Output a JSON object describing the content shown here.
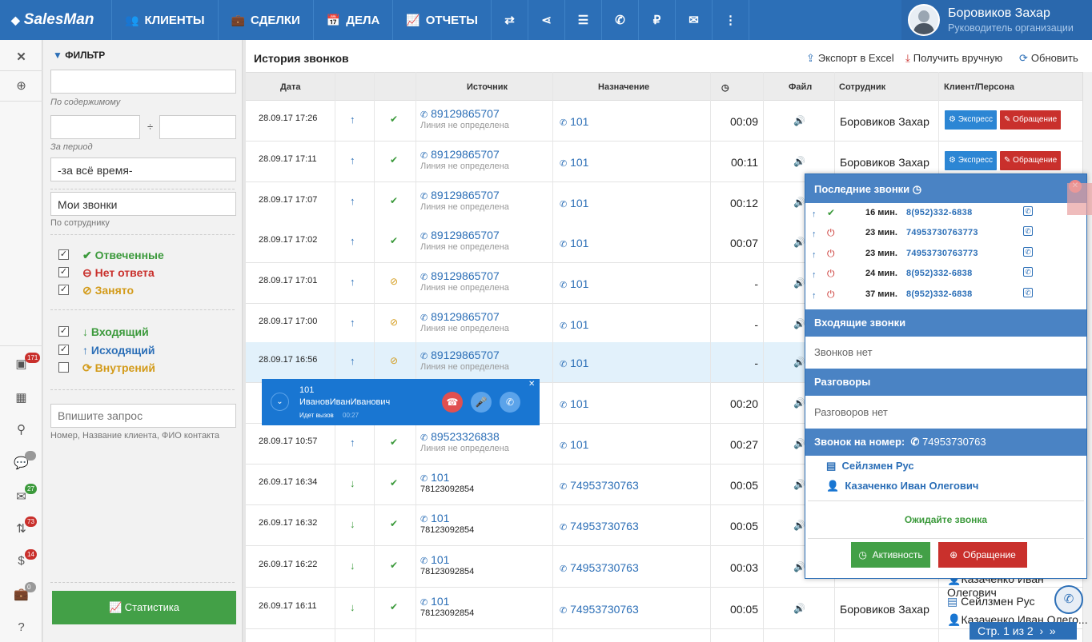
{
  "app": {
    "logo": "SalesMan"
  },
  "nav": {
    "clients": "КЛИЕНТЫ",
    "deals": "СДЕЛКИ",
    "tasks": "ДЕЛА",
    "reports": "ОТЧЕТЫ",
    "ruble": "₽"
  },
  "user": {
    "name": "Боровиков Захар",
    "role": "Руководитель организации"
  },
  "badges": {
    "b1": "171",
    "b2": "27",
    "b3": "73",
    "b4": "14",
    "b5": "0"
  },
  "filter": {
    "title": "ФИЛЬТР",
    "content_label": "По содержимому",
    "period_sep": "÷",
    "period_label": "За период",
    "period_value": "-за всё время-",
    "employee_value": "Мои звонки",
    "employee_label": "По сотруднику",
    "status": [
      {
        "label": "Отвеченные",
        "checked": "✓",
        "color": "#3c9a3c"
      },
      {
        "label": "Нет ответа",
        "checked": "✓",
        "color": "#c9302c"
      },
      {
        "label": "Занято",
        "checked": "✓",
        "color": "#d39b1a"
      }
    ],
    "direction": [
      {
        "label": "Входящий",
        "checked": "✓",
        "color": "#3c9a3c"
      },
      {
        "label": "Исходящий",
        "checked": "✓",
        "color": "#2c6fb7"
      },
      {
        "label": "Внутрений",
        "checked": "",
        "color": "#d39b1a"
      }
    ],
    "query_placeholder": "Впишите запрос",
    "query_hint": "Номер, Название клиента, ФИО контакта",
    "stats_button": "Статистика"
  },
  "main": {
    "title": "История звонков",
    "export": "Экспорт в Excel",
    "fetch": "Получить вручную",
    "refresh": "Обновить",
    "columns": {
      "date": "Дата",
      "source": "Источник",
      "dest": "Назначение",
      "dur_icon": "◷",
      "file": "Файл",
      "employee": "Сотрудник",
      "client": "Клиент/Персона"
    },
    "btn_express": "Экспресс",
    "btn_appeal": "Обращение",
    "rows": [
      {
        "date": "28.09.17 17:26",
        "dir": "↑",
        "status": "✔",
        "src1": "89129865707",
        "src2": "Линия не определена",
        "dst": "101",
        "dur": "00:09",
        "emp": "Боровиков Захар"
      },
      {
        "date": "28.09.17 17:11",
        "dir": "↑",
        "status": "✔",
        "src1": "89129865707",
        "src2": "Линия не определена",
        "dst": "101",
        "dur": "00:11",
        "emp": "Боровиков Захар"
      },
      {
        "date": "28.09.17 17:07",
        "dir": "↑",
        "status": "✔",
        "src1": "89129865707",
        "src2": "Линия не определена",
        "dst": "101",
        "dur": "00:12",
        "emp": ""
      },
      {
        "date": "28.09.17 17:02",
        "dir": "↑",
        "status": "✔",
        "src1": "89129865707",
        "src2": "Линия не определена",
        "dst": "101",
        "dur": "00:07",
        "emp": ""
      },
      {
        "date": "28.09.17 17:01",
        "dir": "↑",
        "status": "⊘",
        "src1": "89129865707",
        "src2": "Линия не определена",
        "dst": "101",
        "dur": "-",
        "emp": ""
      },
      {
        "date": "28.09.17 17:00",
        "dir": "↑",
        "status": "⊘",
        "src1": "89129865707",
        "src2": "Линия не определена",
        "dst": "101",
        "dur": "-",
        "emp": ""
      },
      {
        "date": "28.09.17 16:56",
        "dir": "↑",
        "status": "⊘",
        "src1": "89129865707",
        "src2": "Линия не определена",
        "dst": "101",
        "dur": "-",
        "emp": ""
      },
      {
        "date": "",
        "dir": "",
        "status": "",
        "src1": "",
        "src2": "",
        "dst": "101",
        "dur": "00:20",
        "emp": ""
      },
      {
        "date": "28.09.17 10:57",
        "dir": "↑",
        "status": "✔",
        "src1": "89523326838",
        "src2": "Линия не определена",
        "dst": "101",
        "dur": "00:27",
        "emp": ""
      },
      {
        "date": "26.09.17 16:34",
        "dir": "↓",
        "status": "✔",
        "src1": "101",
        "src2": "78123092854",
        "dst": "74953730763",
        "dur": "00:05",
        "emp": ""
      },
      {
        "date": "26.09.17 16:32",
        "dir": "↓",
        "status": "✔",
        "src1": "101",
        "src2": "78123092854",
        "dst": "74953730763",
        "dur": "00:05",
        "emp": ""
      },
      {
        "date": "26.09.17 16:22",
        "dir": "↓",
        "status": "✔",
        "src1": "101",
        "src2": "78123092854",
        "dst": "74953730763",
        "dur": "00:03",
        "emp": ""
      },
      {
        "date": "26.09.17 16:11",
        "dir": "↓",
        "status": "✔",
        "src1": "101",
        "src2": "78123092854",
        "dst": "74953730763",
        "dur": "00:05",
        "emp": "Боровиков Захар"
      }
    ],
    "client_peek": [
      "Казаченко Иван Олегович",
      "Сейлзмен Рус",
      "Казаченко Иван Олего..."
    ]
  },
  "call_widget": {
    "number": "101",
    "name": "ИвановИванИванович",
    "status": "Идет вызов",
    "time": "00:27"
  },
  "panel": {
    "recent_title": "Последние звонки",
    "recent": [
      {
        "icon": "✔",
        "color": "#3c9a3c",
        "ago": "16 мин.",
        "number": "8(952)332-6838"
      },
      {
        "icon": "⏻",
        "color": "#c9302c",
        "ago": "23 мин.",
        "number": "74953730763773"
      },
      {
        "icon": "⏻",
        "color": "#c9302c",
        "ago": "23 мин.",
        "number": "74953730763773"
      },
      {
        "icon": "⏻",
        "color": "#c9302c",
        "ago": "24 мин.",
        "number": "8(952)332-6838"
      },
      {
        "icon": "⏻",
        "color": "#c9302c",
        "ago": "37 мин.",
        "number": "8(952)332-6838"
      }
    ],
    "incoming_title": "Входящие звонки",
    "incoming_empty": "Звонков нет",
    "talks_title": "Разговоры",
    "talks_empty": "Разговоров нет",
    "callto_label": "Звонок на номер:",
    "callto_number": "74953730763",
    "company": "Сейлзмен Рус",
    "person": "Казаченко Иван Олегович",
    "wait": "Ожидайте звонка",
    "btn_activity": "Активность",
    "btn_appeal": "Обращение"
  },
  "pager": {
    "label": "Стр. 1 из 2"
  },
  "colors": {
    "brand": "#2c6fb7",
    "green": "#3c9a3c",
    "red": "#c9302c",
    "orange": "#d39b1a"
  }
}
